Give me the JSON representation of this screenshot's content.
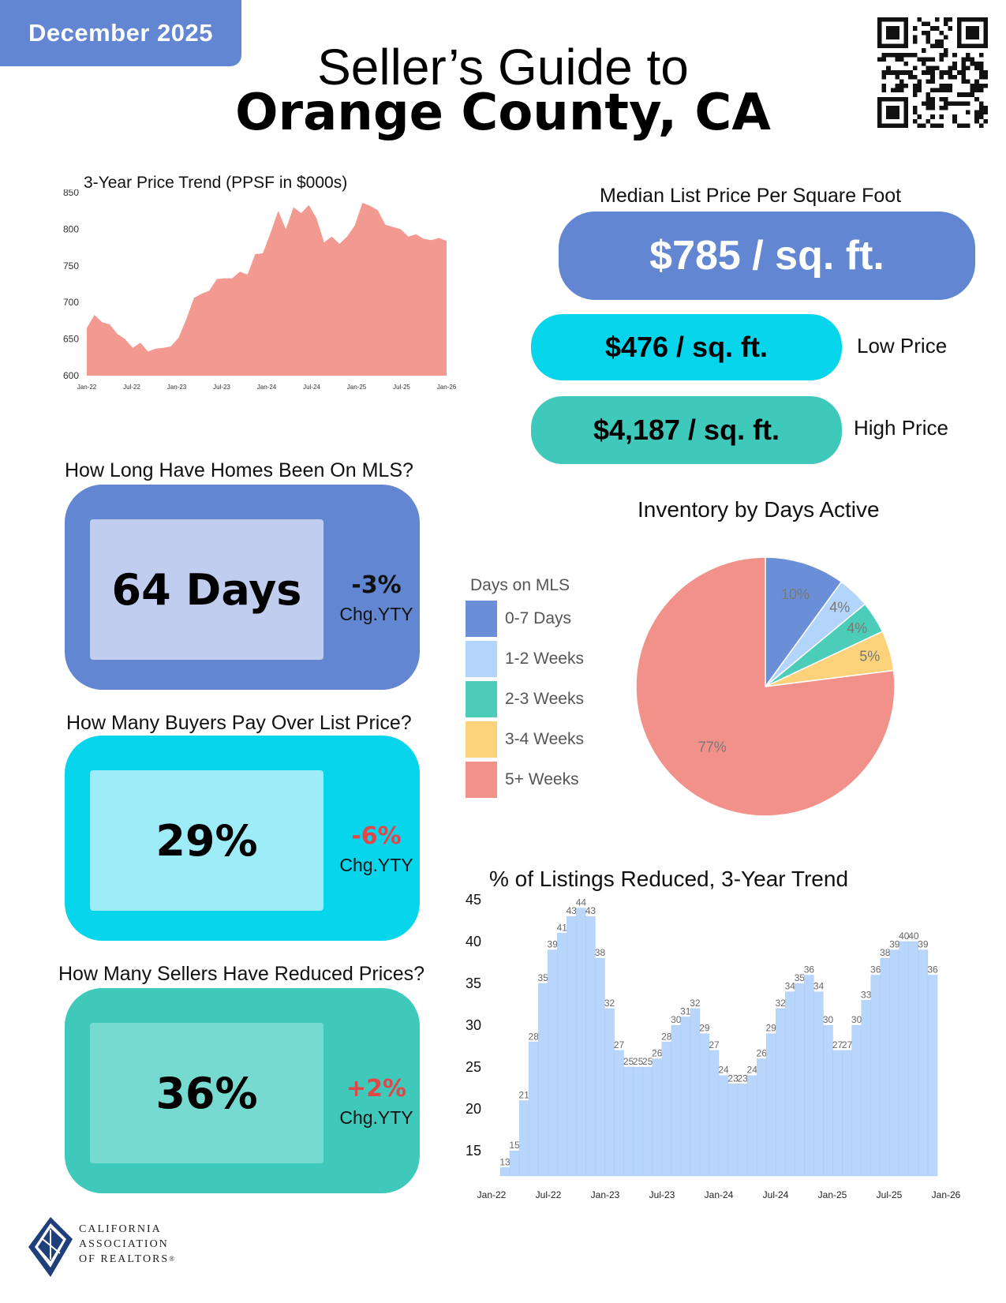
{
  "header": {
    "date": "December 2025",
    "title_line1": "Seller’s Guide to",
    "title_line2": "Orange County, CA"
  },
  "price_trend_chart": {
    "chart_data": {
      "type": "area",
      "title": "3-Year Price Trend (PPSF in $000s)",
      "xlabel": "",
      "ylabel": "",
      "ylim": [
        600,
        850
      ],
      "y_ticks": [
        "850",
        "800",
        "750",
        "700",
        "650",
        "600"
      ],
      "x_ticks": [
        "Jan-22",
        "Jul-22",
        "Jan-23",
        "Jul-23",
        "Jan-24",
        "Jul-24",
        "Jan-25",
        "Jul-25",
        "Jan-26"
      ],
      "values": [
        665,
        683,
        673,
        670,
        657,
        650,
        638,
        645,
        633,
        637,
        638,
        640,
        652,
        677,
        706,
        712,
        716,
        732,
        733,
        733,
        742,
        738,
        766,
        767,
        795,
        825,
        800,
        830,
        822,
        833,
        815,
        782,
        790,
        780,
        790,
        805,
        836,
        832,
        826,
        806,
        803,
        800,
        790,
        793,
        787,
        785,
        788,
        784
      ]
    },
    "color": "#f29a92"
  },
  "median_price": {
    "title": "Median List Price Per Square Foot",
    "value": "$785 / sq. ft.",
    "low_value": "$476 / sq. ft.",
    "low_label": "Low Price",
    "high_value": "$4,187 / sq. ft.",
    "high_label": "High Price"
  },
  "stats": [
    {
      "title": "How Long Have Homes Been On MLS?",
      "value": "64 Days",
      "change": "-3%",
      "change_label": "Chg.YTY",
      "change_color": "#111111",
      "outer_color": "#6286d2",
      "inner_color": "#c0cdee"
    },
    {
      "title": "How Many Buyers Pay Over List Price?",
      "value": "29%",
      "change": "-6%",
      "change_label": "Chg.YTY",
      "change_color": "#e04848",
      "outer_color": "#07d5ec",
      "inner_color": "#9decf7"
    },
    {
      "title": "How Many Sellers Have Reduced Prices?",
      "value": "36%",
      "change": "+2%",
      "change_label": "Chg.YTY",
      "change_color": "#e04848",
      "outer_color": "#3ec9bb",
      "inner_color": "#77dad0"
    }
  ],
  "inventory_chart": {
    "chart_data": {
      "type": "pie",
      "title": "Inventory by Days Active",
      "legend_title": "Days on MLS",
      "categories": [
        "0-7 Days",
        "1-2 Weeks",
        "2-3 Weeks",
        "3-4 Weeks",
        "5+ Weeks"
      ],
      "values": [
        10,
        4,
        4,
        5,
        77
      ],
      "labels": [
        "10%",
        "4%",
        "4%",
        "5%",
        "77%"
      ],
      "colors": [
        "#6b8fd6",
        "#b3d4fb",
        "#4ccdb9",
        "#fcd27b",
        "#f1918a"
      ]
    }
  },
  "reduced_chart": {
    "chart_data": {
      "type": "bar",
      "title": "% of Listings Reduced, 3-Year Trend",
      "ylim": [
        12,
        45
      ],
      "y_ticks": [
        "45",
        "40",
        "35",
        "30",
        "25",
        "20",
        "15"
      ],
      "x_ticks": [
        "Jan-22",
        "Jul-22",
        "Jan-23",
        "Jul-23",
        "Jan-24",
        "Jul-24",
        "Jan-25",
        "Jul-25",
        "Jan-26"
      ],
      "values": [
        13,
        15,
        21,
        28,
        35,
        39,
        41,
        43,
        44,
        43,
        38,
        32,
        27,
        25,
        25,
        25,
        26,
        28,
        30,
        31,
        32,
        29,
        27,
        24,
        23,
        23,
        24,
        26,
        29,
        32,
        34,
        35,
        36,
        34,
        30,
        27,
        27,
        30,
        33,
        36,
        38,
        39,
        40,
        40,
        39,
        36
      ]
    },
    "color": "#b8d5fb"
  },
  "footer": {
    "org_line1": "CALIFORNIA",
    "org_line2": "ASSOCIATION",
    "org_line3": "OF REALTORS",
    "reg_mark": "®"
  }
}
